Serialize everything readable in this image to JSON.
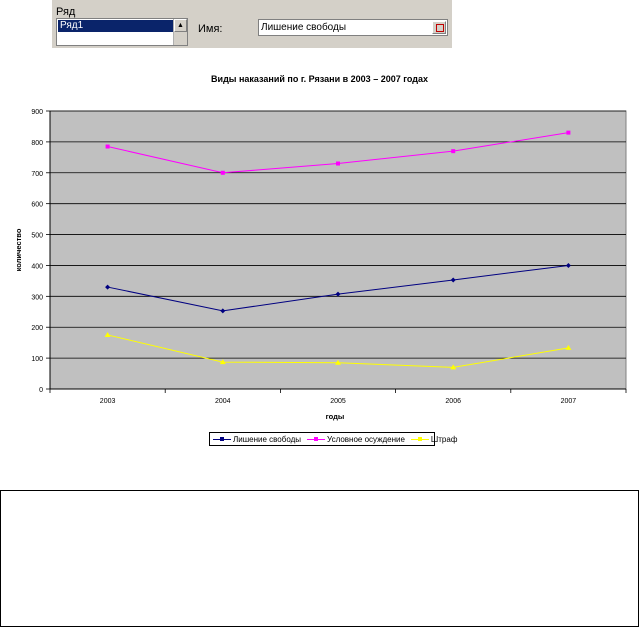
{
  "dialog": {
    "series_label": "Ряд",
    "series_item": "Ряд1",
    "name_label": "Имя:",
    "name_value": "Лишение свободы"
  },
  "chart_data": {
    "type": "line",
    "title": "Виды наказаний по г. Рязани в 2003 – 2007 годах",
    "xlabel": "годы",
    "ylabel": "количество",
    "categories": [
      "2003",
      "2004",
      "2005",
      "2006",
      "2007"
    ],
    "ylim": [
      0,
      900
    ],
    "yticks": [
      0,
      100,
      200,
      300,
      400,
      500,
      600,
      700,
      800,
      900
    ],
    "grid": true,
    "legend_position": "bottom",
    "plot_bg": "#c0c0c0",
    "series": [
      {
        "name": "Лишение свободы",
        "values": [
          330,
          253,
          307,
          353,
          400
        ],
        "color": "#000080",
        "marker": "diamond"
      },
      {
        "name": "Условное осуждение",
        "values": [
          785,
          700,
          730,
          770,
          830
        ],
        "color": "#ff00ff",
        "marker": "square"
      },
      {
        "name": "Штраф",
        "values": [
          175,
          87,
          85,
          70,
          133
        ],
        "color": "#ffff00",
        "marker": "triangle"
      }
    ]
  }
}
